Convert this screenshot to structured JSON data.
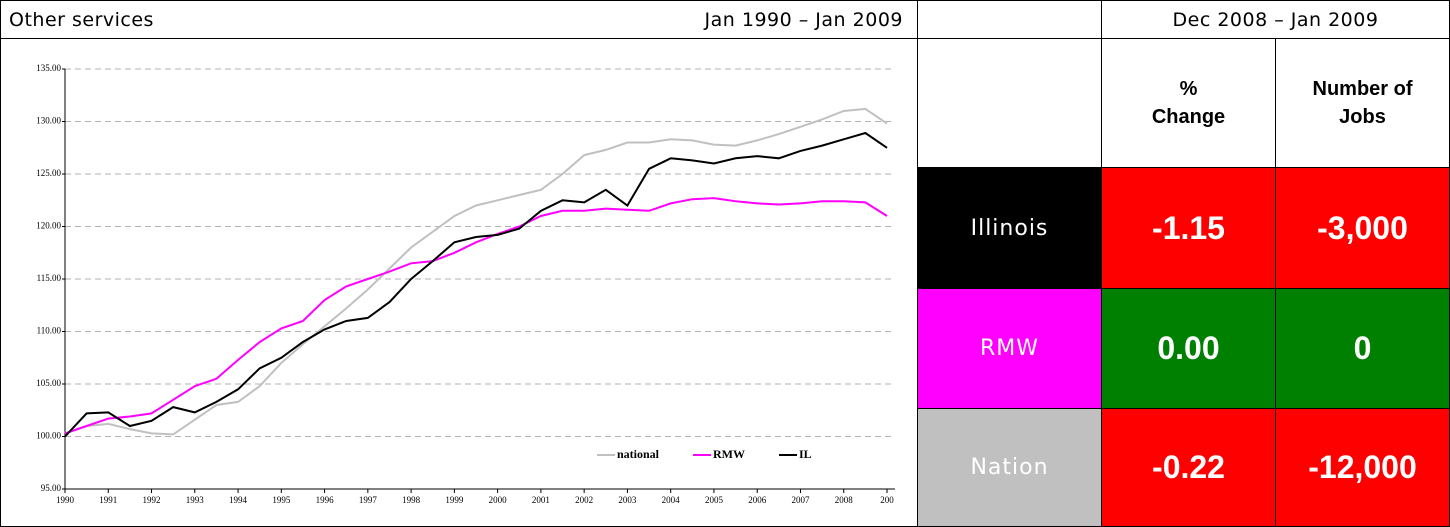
{
  "header": {
    "title": "Other services",
    "period": "Jan 1990 – Jan 2009",
    "right_period": "Dec 2008 – Jan 2009"
  },
  "table": {
    "columns": [
      "% Change",
      "Number of Jobs"
    ],
    "rows": [
      {
        "label": "Illinois",
        "pct": "-1.15",
        "jobs": "-3,000"
      },
      {
        "label": "RMW",
        "pct": "0.00",
        "jobs": "0"
      },
      {
        "label": "Nation",
        "pct": "-0.22",
        "jobs": "-12,000"
      }
    ]
  },
  "chart_data": {
    "type": "line",
    "x": [
      1990,
      1990.5,
      1991,
      1991.5,
      1992,
      1992.5,
      1993,
      1993.5,
      1994,
      1994.5,
      1995,
      1995.5,
      1996,
      1996.5,
      1997,
      1997.5,
      1998,
      1998.5,
      1999,
      1999.5,
      2000,
      2000.5,
      2001,
      2001.5,
      2002,
      2002.5,
      2003,
      2003.5,
      2004,
      2004.5,
      2005,
      2005.5,
      2006,
      2006.5,
      2007,
      2007.5,
      2008,
      2008.5,
      2009
    ],
    "series": [
      {
        "name": "national",
        "color": "#c0c0c0",
        "values": [
          100.3,
          101.0,
          101.2,
          100.7,
          100.3,
          100.2,
          101.6,
          103.0,
          103.3,
          104.8,
          107.0,
          108.8,
          110.5,
          112.2,
          114.0,
          116.0,
          118.0,
          119.5,
          121.0,
          122.0,
          122.5,
          123.0,
          123.5,
          125.0,
          126.8,
          127.3,
          128.0,
          128.0,
          128.3,
          128.2,
          127.8,
          127.7,
          128.2,
          128.8,
          129.5,
          130.2,
          131.0,
          131.2,
          129.8
        ]
      },
      {
        "name": "RMW",
        "color": "#ff00ff",
        "values": [
          100.3,
          101.0,
          101.7,
          101.9,
          102.2,
          103.5,
          104.8,
          105.5,
          107.3,
          109.0,
          110.3,
          111.0,
          113.0,
          114.3,
          115.0,
          115.7,
          116.5,
          116.7,
          117.5,
          118.5,
          119.3,
          120.0,
          121.0,
          121.5,
          121.5,
          121.7,
          121.6,
          121.5,
          122.2,
          122.6,
          122.7,
          122.4,
          122.2,
          122.1,
          122.2,
          122.4,
          122.4,
          122.3,
          121.0
        ]
      },
      {
        "name": "IL",
        "color": "#000000",
        "values": [
          100.0,
          102.2,
          102.3,
          101.0,
          101.5,
          102.8,
          102.3,
          103.3,
          104.5,
          106.5,
          107.5,
          109.0,
          110.2,
          111.0,
          111.3,
          112.8,
          115.0,
          116.7,
          118.5,
          119.0,
          119.2,
          119.8,
          121.5,
          122.5,
          122.3,
          123.5,
          122.0,
          125.5,
          126.5,
          126.3,
          126.0,
          126.5,
          126.7,
          126.5,
          127.2,
          127.7,
          128.3,
          128.9,
          127.5
        ]
      }
    ],
    "xlim": [
      1990,
      2009
    ],
    "ylim": [
      95,
      135
    ],
    "xticks": [
      1990,
      1991,
      1992,
      1993,
      1994,
      1995,
      1996,
      1997,
      1998,
      1999,
      2000,
      2001,
      2002,
      2003,
      2004,
      2005,
      2006,
      2007,
      2008,
      {
        "value": 2009,
        "label": "200"
      }
    ],
    "yticks": [
      {
        "value": 95,
        "label": "95.00"
      },
      {
        "value": 100,
        "label": "100.00"
      },
      {
        "value": 105,
        "label": "105.00"
      },
      {
        "value": 110,
        "label": "110.00"
      },
      {
        "value": 115,
        "label": "115.00"
      },
      {
        "value": 120,
        "label": "120.00"
      },
      {
        "value": 125,
        "label": "125.00"
      },
      {
        "value": 130,
        "label": "130.00"
      },
      {
        "value": 135,
        "label": "135.00"
      }
    ],
    "grid": true,
    "legend": "lower right"
  }
}
